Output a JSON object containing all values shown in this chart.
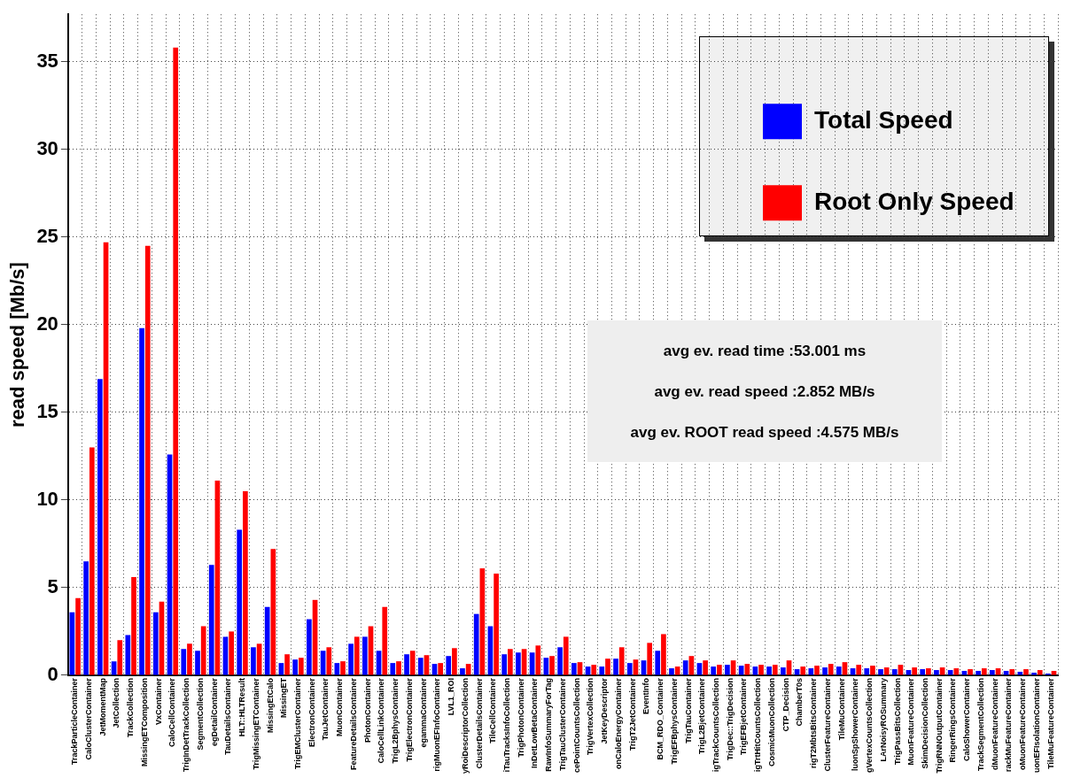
{
  "chart_data": {
    "type": "bar",
    "ylabel": "read speed [Mb/s]",
    "categories": [
      "TrackParticleContainer",
      "CaloClusterContainer",
      "JetMomentMap",
      "JetCollection",
      "TrackCollection",
      "MissingETComposition",
      "VxContainer",
      "CaloCellContainer",
      "TrigInDetTrackCollection",
      "SegmentCollection",
      "egDetailContainer",
      "TauDetailsContainer",
      "HLT::HLTResult",
      "TrigMissingETContainer",
      "MissingEtCalo",
      "MissingET",
      "TrigEMClusterContainer",
      "ElectronContainer",
      "TauJetContainer",
      "MuonContainer",
      "FeatureDetailsContainer",
      "PhotonContainer",
      "CaloCellLinkContainer",
      "TrigL2BphysContainer",
      "TrigElectronContainer",
      "egammaContainer",
      "rigMuonEFInfoContainer",
      "LVL1_ROI",
      "yRoiDescriptorCollection",
      "ClusterDetailsContainer",
      "TileCellContainer",
      "iTauTracksInfoCollection",
      "TrigPhotonContainer",
      "InDetLowBetaContainer",
      "RawInfoSummaryForTag",
      "TrigTauClusterContainer",
      "cePointCountsCollection",
      "TrigVertexCollection",
      "JetKeyDescriptor",
      "onCaloEnergyContainer",
      "TrigT2JetContainer",
      "EventInfo",
      "BCM_RDO_Container",
      "TrigEFBphysContainer",
      "TrigTauContainer",
      "TrigL2BjetContainer",
      "igTrackCountsCollection",
      "TrigDec::TrigDecision",
      "TrigEFBjetContainer",
      "igTrtHitCountsCollection",
      "CosmicMuonCollection",
      "CTP_Decision",
      "ChamberT0s",
      "rigT2MbtsBitsContainer",
      "ClusterFeatureContainer",
      "TileMuContainer",
      "luonSpShowerContainer",
      "gVertexCountsCollection",
      "LArNoisyROSummary",
      "TrigPassBitsCollection",
      "MuonFeatureContainer",
      "SkimDecisionCollection",
      "TrigRNNOutputContainer",
      "RingerRingsContainer",
      "CaloShowerContainer",
      "TrackSegmentCollection",
      "dMuonFeatureContainer",
      "rackMuFeatureContainer",
      "oMuonFeatureContainer",
      "uonEFIsolationContainer",
      "TileMuFeatureContainer"
    ],
    "series": [
      {
        "name": "Total Speed",
        "color": "#0000ff",
        "values": [
          3.6,
          6.5,
          16.9,
          0.8,
          2.3,
          19.8,
          3.6,
          12.6,
          1.5,
          1.4,
          6.3,
          2.2,
          8.3,
          1.6,
          3.9,
          0.7,
          0.9,
          3.2,
          1.4,
          0.7,
          1.8,
          2.2,
          1.4,
          0.7,
          1.2,
          1.0,
          0.65,
          1.1,
          0.4,
          3.5,
          2.8,
          1.2,
          1.3,
          1.3,
          1.0,
          1.6,
          0.7,
          0.5,
          0.5,
          0.95,
          0.7,
          0.85,
          1.4,
          0.4,
          0.85,
          0.7,
          0.5,
          0.6,
          0.55,
          0.5,
          0.5,
          0.45,
          0.35,
          0.4,
          0.45,
          0.5,
          0.4,
          0.4,
          0.35,
          0.35,
          0.3,
          0.35,
          0.3,
          0.3,
          0.25,
          0.25,
          0.3,
          0.25,
          0.2,
          0.15,
          0.1
        ]
      },
      {
        "name": "Root Only Speed",
        "color": "#ff0000",
        "values": [
          4.4,
          13.0,
          24.7,
          2.0,
          5.6,
          24.5,
          4.2,
          35.8,
          1.8,
          2.8,
          11.1,
          2.5,
          10.5,
          1.8,
          7.2,
          1.2,
          1.0,
          4.3,
          1.6,
          0.8,
          2.2,
          2.8,
          3.9,
          0.8,
          1.4,
          1.15,
          0.7,
          1.55,
          0.65,
          6.1,
          5.8,
          1.5,
          1.5,
          1.7,
          1.1,
          2.2,
          0.75,
          0.6,
          0.95,
          1.6,
          0.9,
          1.85,
          2.35,
          0.5,
          1.1,
          0.85,
          0.6,
          0.85,
          0.65,
          0.6,
          0.6,
          0.85,
          0.5,
          0.55,
          0.65,
          0.75,
          0.6,
          0.55,
          0.45,
          0.6,
          0.45,
          0.4,
          0.45,
          0.4,
          0.35,
          0.4,
          0.4,
          0.35,
          0.35,
          0.3,
          0.25
        ]
      }
    ],
    "ylim": [
      0,
      37.7
    ],
    "yticks": [
      0,
      5,
      10,
      15,
      20,
      25,
      30,
      35
    ],
    "grid": true,
    "legend": "top right",
    "annotations": [
      "avg ev. read  time :53.001 ms",
      "avg ev. read speed :2.852 MB/s",
      "avg ev. ROOT read speed :4.575 MB/s"
    ]
  }
}
